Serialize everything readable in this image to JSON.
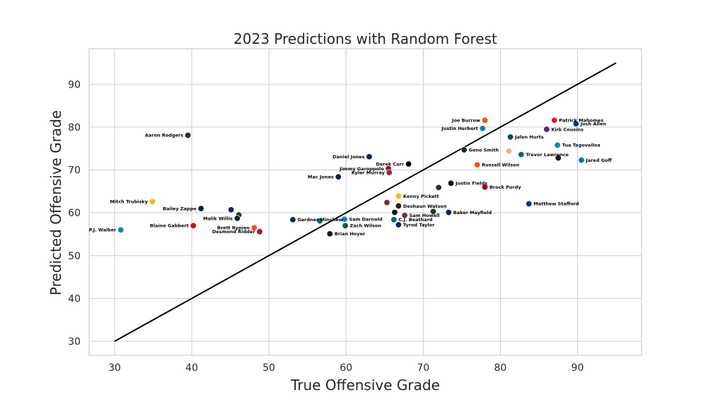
{
  "chart_data": {
    "type": "scatter",
    "title": "2023 Predictions with Random Forest",
    "xlabel": "True Offensive Grade",
    "ylabel": "Predicted Offensive Grade",
    "xlim": [
      26.7,
      98.3
    ],
    "ylim": [
      26.7,
      98.3
    ],
    "xticks": [
      30,
      40,
      50,
      60,
      70,
      80,
      90
    ],
    "yticks": [
      30,
      40,
      50,
      60,
      70,
      80,
      90
    ],
    "grid": true,
    "reference_line": {
      "x": [
        30,
        95
      ],
      "y": [
        30,
        95
      ]
    },
    "points": [
      {
        "label": "Patrick Mahomes",
        "x": 87.0,
        "y": 81.6,
        "color": "#e31837"
      },
      {
        "label": "Josh Allen",
        "x": 89.8,
        "y": 80.8,
        "color": "#00338d"
      },
      {
        "label": "Kirk Cousins",
        "x": 86.0,
        "y": 79.5,
        "color": "#4f2683"
      },
      {
        "label": "Joe Burrow",
        "x": 78.0,
        "y": 81.6,
        "color": "#fb4f14"
      },
      {
        "label": "Justin Herbert",
        "x": 77.7,
        "y": 79.7,
        "color": "#0080c6"
      },
      {
        "label": "Jalen Hurts",
        "x": 81.3,
        "y": 77.7,
        "color": "#004c54"
      },
      {
        "label": "Tua Tagovailoa",
        "x": 87.4,
        "y": 75.8,
        "color": "#008e97"
      },
      {
        "label": "Geno Smith",
        "x": 75.3,
        "y": 74.7,
        "color": "#002244"
      },
      {
        "label": "",
        "x": 81.1,
        "y": 74.4,
        "color": "#d3bc8d"
      },
      {
        "label": "Trevor Lawrence",
        "x": 82.7,
        "y": 73.6,
        "color": "#006778"
      },
      {
        "label": "Jared Goff",
        "x": 90.5,
        "y": 72.3,
        "color": "#0076b6"
      },
      {
        "label": "",
        "x": 87.5,
        "y": 72.8,
        "color": "#0b162a"
      },
      {
        "label": "Daniel Jones",
        "x": 63.0,
        "y": 73.1,
        "color": "#0b2265"
      },
      {
        "label": "Derek Carr",
        "x": 68.1,
        "y": 71.4,
        "color": "#000000"
      },
      {
        "label": "Russell Wilson",
        "x": 77.0,
        "y": 71.2,
        "color": "#fb4f14"
      },
      {
        "label": "Jimmy Garoppolo",
        "x": 65.5,
        "y": 70.3,
        "color": "#a5001b"
      },
      {
        "label": "Kyler Murray",
        "x": 65.6,
        "y": 69.4,
        "color": "#97233f"
      },
      {
        "label": "Mac Jones",
        "x": 59.0,
        "y": 68.4,
        "color": "#002244"
      },
      {
        "label": "Justin Fields",
        "x": 73.6,
        "y": 66.9,
        "color": "#0b162a"
      },
      {
        "label": "Brock Purdy",
        "x": 78.0,
        "y": 66.0,
        "color": "#aa0000"
      },
      {
        "label": "",
        "x": 72.0,
        "y": 65.9,
        "color": "#203731"
      },
      {
        "label": "Kenny Pickett",
        "x": 66.8,
        "y": 63.9,
        "color": "#ffb612"
      },
      {
        "label": "Aaron Rodgers",
        "x": 39.5,
        "y": 78.1,
        "color": "#203731"
      },
      {
        "label": "Mitch Trubisky",
        "x": 34.9,
        "y": 62.6,
        "color": "#ffb612"
      },
      {
        "label": "Matthew Stafford",
        "x": 83.7,
        "y": 62.1,
        "color": "#003594"
      },
      {
        "label": "",
        "x": 65.3,
        "y": 62.4,
        "color": "#7c2a3c"
      },
      {
        "label": "Deshaun Watson",
        "x": 66.8,
        "y": 61.6,
        "color": "#311d00"
      },
      {
        "label": "Bailey Zappe",
        "x": 41.2,
        "y": 61.0,
        "color": "#002244"
      },
      {
        "label": "",
        "x": 45.1,
        "y": 60.7,
        "color": "#241773"
      },
      {
        "label": "",
        "x": 46.1,
        "y": 59.5,
        "color": "#203731"
      },
      {
        "label": "Baker Mayfield",
        "x": 73.3,
        "y": 60.1,
        "color": "#0b2265"
      },
      {
        "label": "",
        "x": 71.3,
        "y": 60.3,
        "color": "#203731"
      },
      {
        "label": "",
        "x": 66.3,
        "y": 60.1,
        "color": "#0b162a"
      },
      {
        "label": "Sam Howell",
        "x": 67.6,
        "y": 59.4,
        "color": "#773141"
      },
      {
        "label": "Malik Willis",
        "x": 45.9,
        "y": 58.7,
        "color": "#0c2340"
      },
      {
        "label": "Gardner Minshew",
        "x": 53.1,
        "y": 58.4,
        "color": "#002c5f"
      },
      {
        "label": "",
        "x": 56.6,
        "y": 58.1,
        "color": "#006778"
      },
      {
        "label": "Sam Darnold",
        "x": 59.8,
        "y": 58.5,
        "color": "#0085ca"
      },
      {
        "label": "C.J. Beathard",
        "x": 66.2,
        "y": 58.4,
        "color": "#006778"
      },
      {
        "label": "Tyrod Taylor",
        "x": 66.8,
        "y": 57.2,
        "color": "#0b2265"
      },
      {
        "label": "Zach Wilson",
        "x": 59.9,
        "y": 57.0,
        "color": "#125740"
      },
      {
        "label": "Blaine Gabbert",
        "x": 40.2,
        "y": 57.0,
        "color": "#d50a0a"
      },
      {
        "label": "P.J. Walker",
        "x": 30.8,
        "y": 56.0,
        "color": "#0085ca"
      },
      {
        "label": "Brett Rypien",
        "x": 48.1,
        "y": 56.5,
        "color": "#fb4f14"
      },
      {
        "label": "Desmond Ridder",
        "x": 48.8,
        "y": 55.6,
        "color": "#a71930"
      },
      {
        "label": "Brian Hoyer",
        "x": 57.9,
        "y": 55.1,
        "color": "#002244"
      }
    ]
  }
}
